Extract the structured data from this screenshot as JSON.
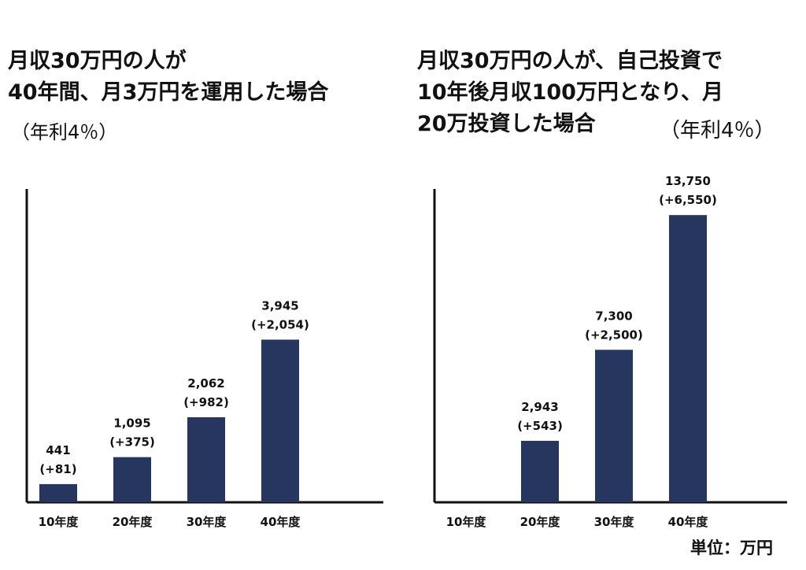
{
  "unit_label": "単位：万円",
  "colors": {
    "bar": "#26365f",
    "axis": "#111111",
    "text": "#111111"
  },
  "chart_data": [
    {
      "type": "bar",
      "title_lines": [
        "月収30万円の人が",
        "40年間、月3万円を運用した場合"
      ],
      "note": "（年利4％）",
      "categories": [
        "10年度",
        "20年度",
        "30年度",
        "40年度"
      ],
      "values": [
        441,
        1095,
        2062,
        3945
      ],
      "value_labels": [
        "441",
        "1,095",
        "2,062",
        "3,945"
      ],
      "gain_labels": [
        "(+81)",
        "(+375)",
        "(+982)",
        "(+2,054)"
      ],
      "ylim": [
        0,
        7600
      ],
      "xlabel": "",
      "ylabel": ""
    },
    {
      "type": "bar",
      "title_lines": [
        "月収30万円の人が、自己投資で",
        "10年後月収100万円となり、月",
        "20万投資した場合"
      ],
      "note": "（年利4％）",
      "categories": [
        "10年度",
        "20年度",
        "30年度",
        "40年度"
      ],
      "values": [
        null,
        2943,
        7300,
        13750
      ],
      "value_labels": [
        "",
        "2,943",
        "7,300",
        "13,750"
      ],
      "gain_labels": [
        "",
        "(+543)",
        "(+2,500)",
        "(+6,550)"
      ],
      "ylim": [
        0,
        15000
      ],
      "xlabel": "",
      "ylabel": ""
    }
  ]
}
